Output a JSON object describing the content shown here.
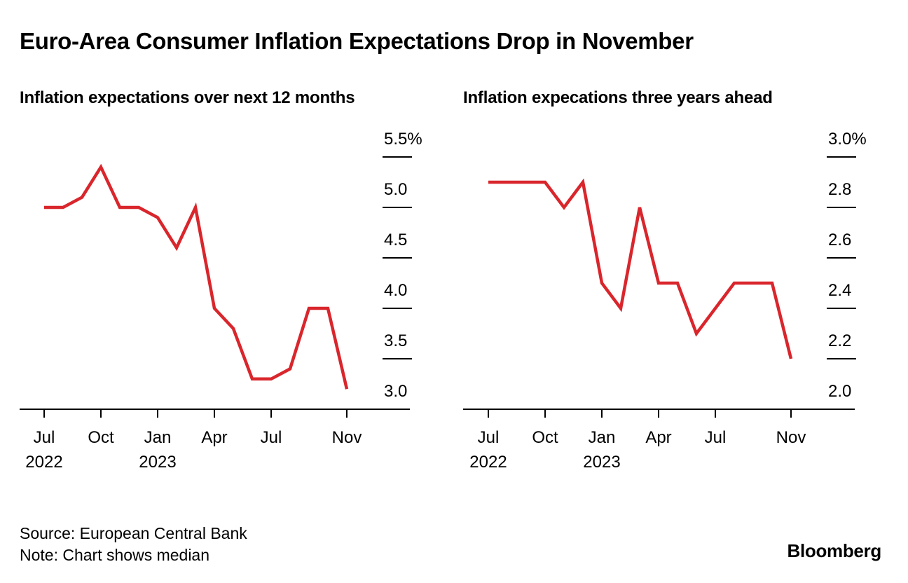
{
  "title": "Euro-Area Consumer Inflation Expectations Drop in November",
  "source": "Source: European Central Bank",
  "note": "Note: Chart shows median",
  "brand": "Bloomberg",
  "colors": {
    "line": "#d9262c",
    "axis": "#000000"
  },
  "chart_data": [
    {
      "type": "line",
      "title": "Inflation expectations over next 12 months",
      "ylim": [
        3.0,
        5.5
      ],
      "yticks": [
        {
          "value": 5.5,
          "label": "5.5%"
        },
        {
          "value": 5.0,
          "label": "5.0"
        },
        {
          "value": 4.5,
          "label": "4.5"
        },
        {
          "value": 4.0,
          "label": "4.0"
        },
        {
          "value": 3.5,
          "label": "3.5"
        },
        {
          "value": 3.0,
          "label": "3.0"
        }
      ],
      "xticks": [
        {
          "label": "Jul",
          "sub": "2022"
        },
        {
          "label": "Oct",
          "sub": ""
        },
        {
          "label": "Jan",
          "sub": "2023"
        },
        {
          "label": "Apr",
          "sub": ""
        },
        {
          "label": "Jul",
          "sub": ""
        },
        {
          "label": "Nov",
          "sub": ""
        }
      ],
      "x": [
        "2022-07",
        "2022-08",
        "2022-09",
        "2022-10",
        "2022-11",
        "2022-12",
        "2023-01",
        "2023-02",
        "2023-03",
        "2023-04",
        "2023-05",
        "2023-06",
        "2023-07",
        "2023-08",
        "2023-09",
        "2023-10",
        "2023-11"
      ],
      "series": [
        {
          "name": "Median",
          "values": [
            5.0,
            5.0,
            5.1,
            5.4,
            5.0,
            5.0,
            4.9,
            4.6,
            5.0,
            4.0,
            3.8,
            3.3,
            3.3,
            3.4,
            4.0,
            4.0,
            3.2
          ]
        }
      ]
    },
    {
      "type": "line",
      "title": "Inflation expecations three years ahead",
      "ylim": [
        2.0,
        3.0
      ],
      "yticks": [
        {
          "value": 3.0,
          "label": "3.0%"
        },
        {
          "value": 2.8,
          "label": "2.8"
        },
        {
          "value": 2.6,
          "label": "2.6"
        },
        {
          "value": 2.4,
          "label": "2.4"
        },
        {
          "value": 2.2,
          "label": "2.2"
        },
        {
          "value": 2.0,
          "label": "2.0"
        }
      ],
      "xticks": [
        {
          "label": "Jul",
          "sub": "2022"
        },
        {
          "label": "Oct",
          "sub": ""
        },
        {
          "label": "Jan",
          "sub": "2023"
        },
        {
          "label": "Apr",
          "sub": ""
        },
        {
          "label": "Jul",
          "sub": ""
        },
        {
          "label": "Nov",
          "sub": ""
        }
      ],
      "x": [
        "2022-07",
        "2022-08",
        "2022-09",
        "2022-10",
        "2022-11",
        "2022-12",
        "2023-01",
        "2023-02",
        "2023-03",
        "2023-04",
        "2023-05",
        "2023-06",
        "2023-07",
        "2023-08",
        "2023-09",
        "2023-10",
        "2023-11"
      ],
      "series": [
        {
          "name": "Median",
          "values": [
            2.9,
            2.9,
            2.9,
            2.9,
            2.8,
            2.9,
            2.5,
            2.4,
            2.8,
            2.5,
            2.5,
            2.3,
            2.4,
            2.5,
            2.5,
            2.5,
            2.2
          ]
        }
      ]
    }
  ]
}
